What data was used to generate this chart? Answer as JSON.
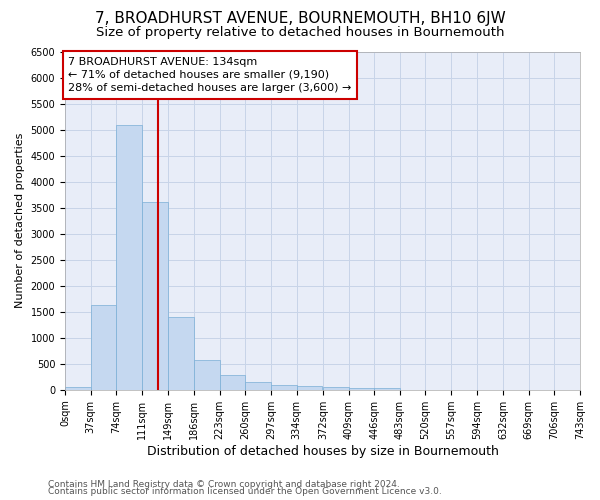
{
  "title": "7, BROADHURST AVENUE, BOURNEMOUTH, BH10 6JW",
  "subtitle": "Size of property relative to detached houses in Bournemouth",
  "xlabel": "Distribution of detached houses by size in Bournemouth",
  "ylabel": "Number of detached properties",
  "bar_values": [
    50,
    1620,
    5080,
    3600,
    1400,
    580,
    290,
    140,
    100,
    70,
    50,
    40,
    40,
    0,
    0,
    0,
    0,
    0,
    0,
    0
  ],
  "bin_edges": [
    0,
    37,
    74,
    111,
    149,
    186,
    223,
    260,
    297,
    334,
    372,
    409,
    446,
    483,
    520,
    557,
    594,
    632,
    669,
    706,
    743
  ],
  "x_tick_labels": [
    "0sqm",
    "37sqm",
    "74sqm",
    "111sqm",
    "149sqm",
    "186sqm",
    "223sqm",
    "260sqm",
    "297sqm",
    "334sqm",
    "372sqm",
    "409sqm",
    "446sqm",
    "483sqm",
    "520sqm",
    "557sqm",
    "594sqm",
    "632sqm",
    "669sqm",
    "706sqm",
    "743sqm"
  ],
  "bar_color": "#c5d8f0",
  "bar_edge_color": "#7aaed6",
  "grid_color": "#c8d4e8",
  "property_line_x": 134,
  "property_line_color": "#cc0000",
  "annotation_text": "7 BROADHURST AVENUE: 134sqm\n← 71% of detached houses are smaller (9,190)\n28% of semi-detached houses are larger (3,600) →",
  "annotation_box_color": "#cc0000",
  "ylim": [
    0,
    6500
  ],
  "yticks": [
    0,
    500,
    1000,
    1500,
    2000,
    2500,
    3000,
    3500,
    4000,
    4500,
    5000,
    5500,
    6000,
    6500
  ],
  "footer_line1": "Contains HM Land Registry data © Crown copyright and database right 2024.",
  "footer_line2": "Contains public sector information licensed under the Open Government Licence v3.0.",
  "plot_bg_color": "#e8edf8",
  "title_fontsize": 11,
  "subtitle_fontsize": 9.5,
  "xlabel_fontsize": 9,
  "ylabel_fontsize": 8,
  "tick_fontsize": 7,
  "footer_fontsize": 6.5,
  "annotation_fontsize": 8
}
